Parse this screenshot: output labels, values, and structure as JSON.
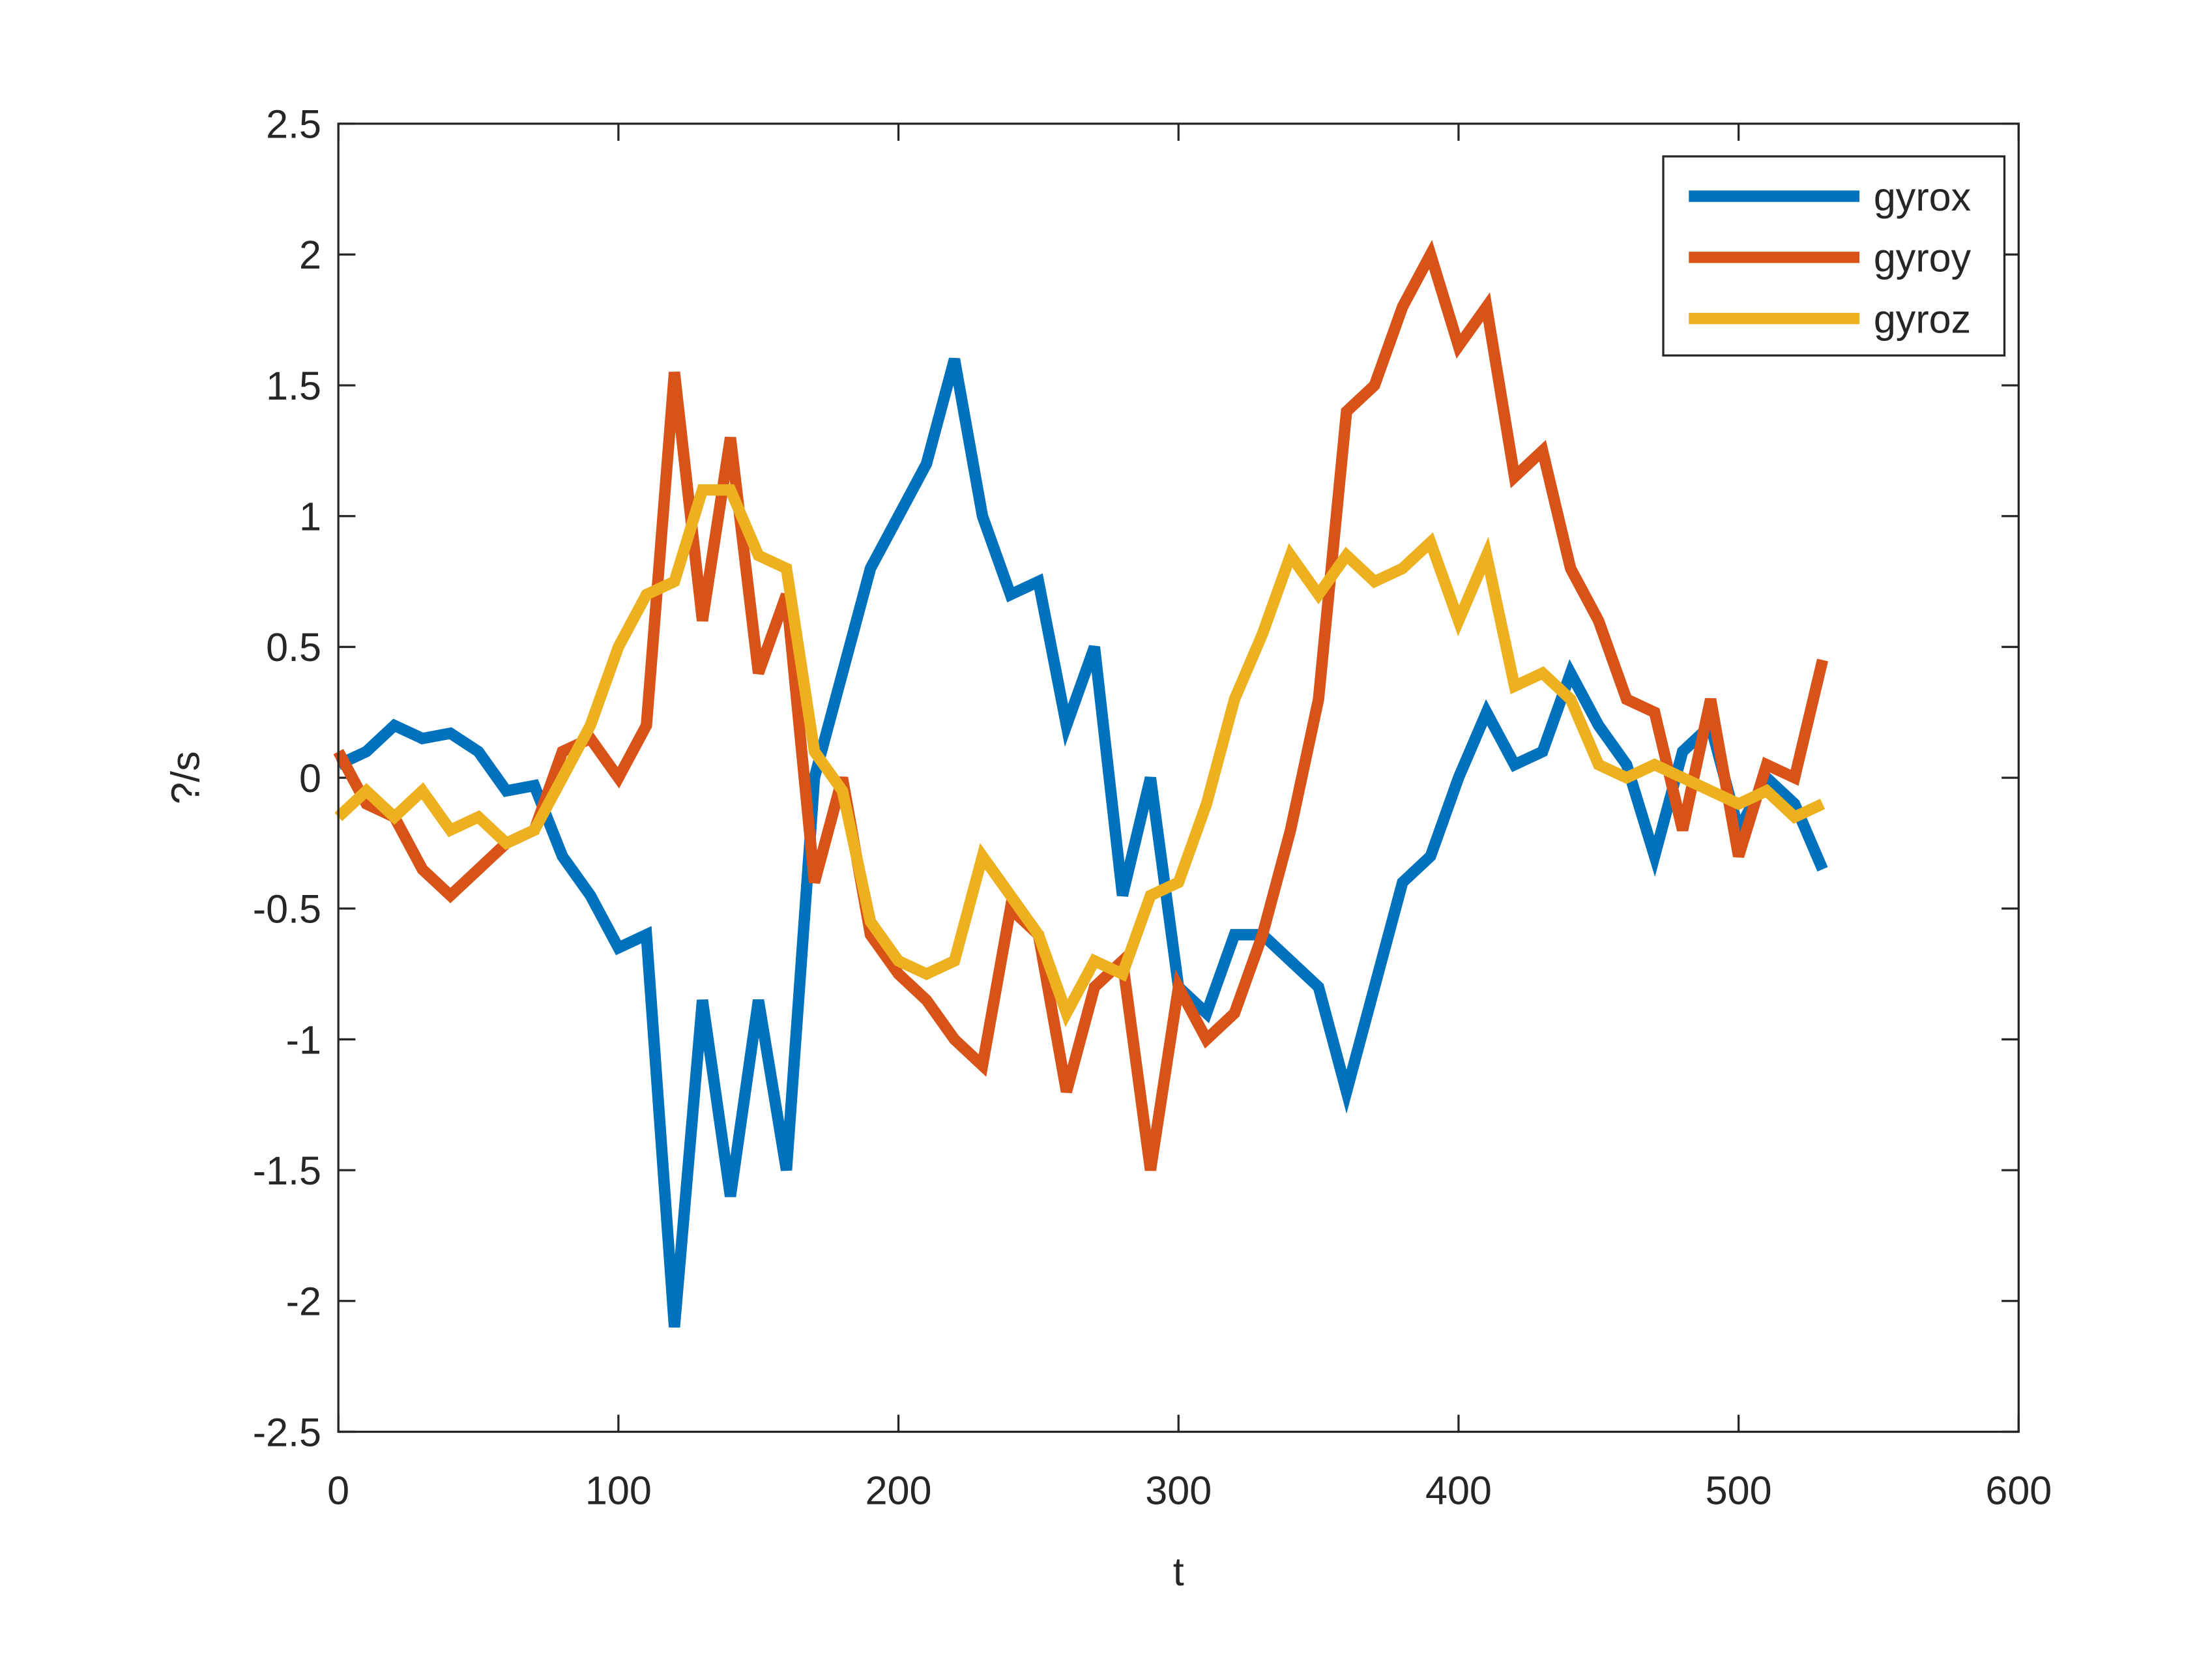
{
  "chart_data": {
    "type": "line",
    "xlabel": "t",
    "ylabel": "?/s",
    "x": [
      0,
      10,
      20,
      30,
      40,
      50,
      60,
      70,
      80,
      90,
      100,
      110,
      120,
      130,
      140,
      150,
      160,
      170,
      180,
      190,
      200,
      210,
      220,
      230,
      240,
      250,
      260,
      270,
      280,
      290,
      300,
      310,
      320,
      330,
      340,
      350,
      360,
      370,
      380,
      390,
      400,
      410,
      420,
      430,
      440,
      450,
      460,
      470,
      480,
      490,
      500,
      510,
      520,
      530
    ],
    "series": [
      {
        "name": "gyrox",
        "color": "#0072BD",
        "values": [
          0.05,
          0.1,
          0.2,
          0.15,
          0.17,
          0.1,
          -0.05,
          -0.03,
          -0.3,
          -0.45,
          -0.65,
          -0.6,
          -2.1,
          -0.85,
          -1.6,
          -0.85,
          -1.5,
          0.0,
          0.4,
          0.8,
          1.0,
          1.2,
          1.6,
          1.0,
          0.7,
          0.75,
          0.2,
          0.5,
          -0.45,
          0.0,
          -0.8,
          -0.9,
          -0.6,
          -0.6,
          -0.7,
          -0.8,
          -1.2,
          -0.8,
          -0.4,
          -0.3,
          0.0,
          0.25,
          0.05,
          0.1,
          0.4,
          0.2,
          0.05,
          -0.3,
          0.1,
          0.2,
          -0.2,
          0.0,
          -0.1,
          -0.35
        ]
      },
      {
        "name": "gyroy",
        "color": "#D95319",
        "values": [
          0.1,
          -0.1,
          -0.15,
          -0.35,
          -0.45,
          -0.35,
          -0.25,
          -0.2,
          0.1,
          0.15,
          0.0,
          0.2,
          1.55,
          0.6,
          1.3,
          0.4,
          0.7,
          -0.4,
          0.0,
          -0.6,
          -0.75,
          -0.85,
          -1.0,
          -1.1,
          -0.5,
          -0.6,
          -1.2,
          -0.8,
          -0.7,
          -1.5,
          -0.8,
          -1.0,
          -0.9,
          -0.6,
          -0.2,
          0.3,
          1.4,
          1.5,
          1.8,
          2.0,
          1.65,
          1.8,
          1.15,
          1.25,
          0.8,
          0.6,
          0.3,
          0.25,
          -0.2,
          0.3,
          -0.3,
          0.05,
          0.0,
          0.45
        ]
      },
      {
        "name": "gyroz",
        "color": "#EDB120",
        "values": [
          -0.15,
          -0.05,
          -0.15,
          -0.05,
          -0.2,
          -0.15,
          -0.25,
          -0.2,
          0.0,
          0.2,
          0.5,
          0.7,
          0.75,
          1.1,
          1.1,
          0.85,
          0.8,
          0.1,
          -0.05,
          -0.55,
          -0.7,
          -0.75,
          -0.7,
          -0.3,
          -0.45,
          -0.6,
          -0.9,
          -0.7,
          -0.75,
          -0.45,
          -0.4,
          -0.1,
          0.3,
          0.55,
          0.85,
          0.7,
          0.85,
          0.75,
          0.8,
          0.9,
          0.6,
          0.85,
          0.35,
          0.4,
          0.3,
          0.05,
          0.0,
          0.05,
          0.0,
          -0.05,
          -0.1,
          -0.05,
          -0.15,
          -0.1
        ]
      }
    ],
    "xlim": [
      0,
      600
    ],
    "xticks": [
      0,
      100,
      200,
      300,
      400,
      500,
      600
    ],
    "ylim": [
      -2.5,
      2.5
    ],
    "yticks": [
      -2.5,
      -2,
      -1.5,
      -1,
      -0.5,
      0,
      0.5,
      1,
      1.5,
      2,
      2.5
    ],
    "legend": "northeast"
  }
}
